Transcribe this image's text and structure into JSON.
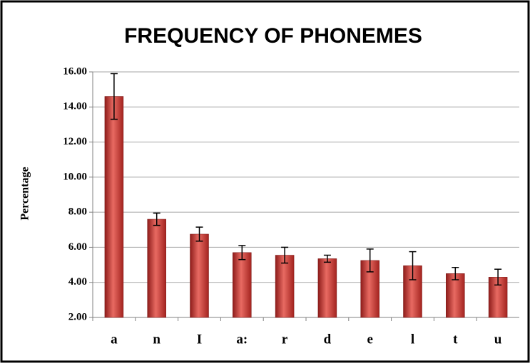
{
  "chart_data": {
    "type": "bar",
    "title": "FREQUENCY OF PHONEMES",
    "y_label": "Percentage",
    "categories": [
      "a",
      "n",
      "I",
      "a:",
      "r",
      "d",
      "e",
      "l",
      "t",
      "u"
    ],
    "values": [
      14.6,
      7.6,
      6.75,
      5.7,
      5.55,
      5.35,
      5.25,
      4.95,
      4.5,
      4.3
    ],
    "errors": [
      1.3,
      0.35,
      0.4,
      0.4,
      0.45,
      0.2,
      0.65,
      0.8,
      0.35,
      0.45
    ],
    "color": "#c0302c",
    "ylim": [
      2,
      16
    ],
    "yticks": [
      {
        "value": 2,
        "label": "2.00"
      },
      {
        "value": 4,
        "label": "4.00"
      },
      {
        "value": 6,
        "label": "6.00"
      },
      {
        "value": 8,
        "label": "8.00"
      },
      {
        "value": 10,
        "label": "10.00"
      },
      {
        "value": 12,
        "label": "12.00"
      },
      {
        "value": 14,
        "label": "14.00"
      },
      {
        "value": 16,
        "label": "16.00"
      }
    ],
    "grid": true
  }
}
